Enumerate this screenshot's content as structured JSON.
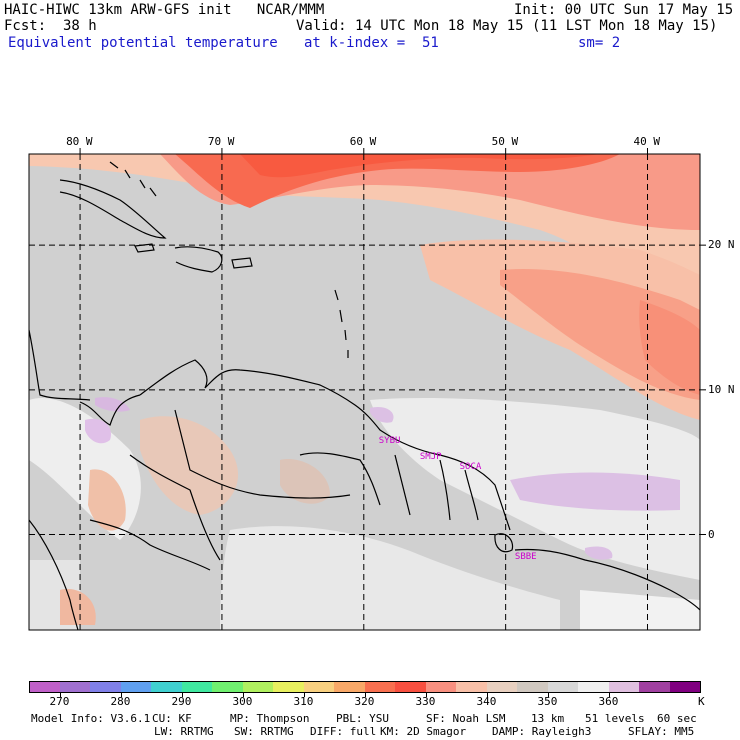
{
  "header": {
    "line1_left": "HAIC-HIWC 13km ARW-GFS init   NCAR/MMM",
    "line1_right": "Init: 00 UTC Sun 17 May 15",
    "line2_left": "Fcst:  38 h",
    "line2_right": "Valid: 14 UTC Mon 18 May 15 (11 LST Mon 18 May 15)",
    "line3_left": "Equivalent potential temperature",
    "line3_mid": "at k-index =  51",
    "line3_right": "sm= 2"
  },
  "map": {
    "lon_labels": [
      "80 W",
      "70 W",
      "60 W",
      "50 W",
      "40 W"
    ],
    "lon_values": [
      -80,
      -70,
      -60,
      -50,
      -40
    ],
    "lat_labels": [
      "20 N",
      "10 N",
      "0"
    ],
    "lat_values": [
      20,
      10,
      0
    ],
    "extent": {
      "lon_min": -83.6,
      "lon_max": -36.3,
      "lat_max": 26.3,
      "lat_min": -6.6
    },
    "stations": [
      {
        "name": "SYBU",
        "lon": -58.1,
        "lat": 6.6
      },
      {
        "name": "SMJP",
        "lon": -55.2,
        "lat": 5.5
      },
      {
        "name": "SOCA",
        "lon": -52.4,
        "lat": 4.8
      },
      {
        "name": "SBBE",
        "lon": -48.5,
        "lat": -1.4
      }
    ],
    "station_color": "#cc00cc"
  },
  "colorbar": {
    "colors": [
      "#c060c8",
      "#a070d0",
      "#8080e8",
      "#60a0f0",
      "#40d0d0",
      "#40e8a0",
      "#70f070",
      "#b0f060",
      "#e8f060",
      "#f8d080",
      "#f8a868",
      "#f87050",
      "#f85040",
      "#f89080",
      "#f8c0a8",
      "#e8d0c0",
      "#d0c8c0",
      "#d8d8d8",
      "#f0f0f0",
      "#e0c0e0",
      "#a040a0",
      "#800080"
    ],
    "labels": [
      "270",
      "280",
      "290",
      "300",
      "310",
      "320",
      "330",
      "340",
      "350",
      "360"
    ],
    "unit": "K"
  },
  "footer": {
    "line1": [
      "Model Info: V3.6.1",
      "CU: KF",
      "MP: Thompson",
      "PBL: YSU",
      "SF: Noah LSM",
      "13 km",
      "51 levels",
      "60 sec"
    ],
    "line2": [
      "LW: RRTMG",
      "SW: RRTMG",
      "DIFF: full",
      "KM: 2D Smagor",
      "DAMP: Rayleigh3",
      "SFLAY: MM5"
    ]
  }
}
